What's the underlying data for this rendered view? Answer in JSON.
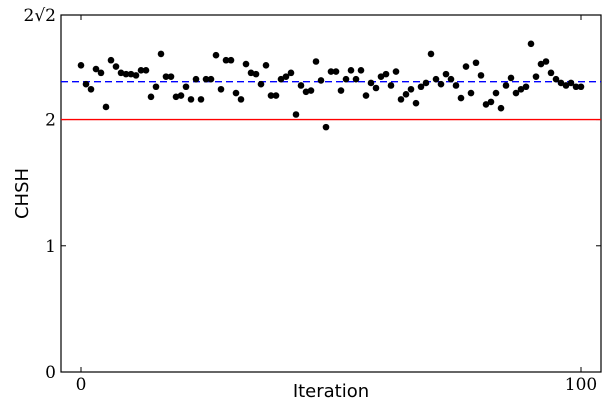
{
  "chart_data": {
    "type": "scatter",
    "title": "",
    "xlabel": "Iteration",
    "ylabel": "CHSH",
    "xlim": [
      -4,
      104
    ],
    "ylim": [
      0,
      2.8284
    ],
    "grid": false,
    "x_ticks": [
      {
        "value": 0,
        "label": "0"
      },
      {
        "value": 100,
        "label": "100"
      }
    ],
    "y_ticks": [
      {
        "value": 0,
        "label": "0"
      },
      {
        "value": 1,
        "label": "1"
      },
      {
        "value": 2,
        "label": "2"
      },
      {
        "value": 2.8284,
        "label": "2√2"
      }
    ],
    "reference_lines": [
      {
        "y": 2.0,
        "style": "solid",
        "color": "#ff0000"
      },
      {
        "y": 2.3,
        "style": "dashed",
        "color": "#0000ff"
      }
    ],
    "series": [
      {
        "color": "#000000",
        "x": [
          0,
          1,
          2,
          3,
          4,
          5,
          6,
          7,
          8,
          9,
          10,
          11,
          12,
          13,
          14,
          15,
          16,
          17,
          18,
          19,
          20,
          21,
          22,
          23,
          24,
          25,
          26,
          27,
          28,
          29,
          30,
          31,
          32,
          33,
          34,
          35,
          36,
          37,
          38,
          39,
          40,
          41,
          42,
          43,
          44,
          45,
          46,
          47,
          48,
          49,
          50,
          51,
          52,
          53,
          54,
          55,
          56,
          57,
          58,
          59,
          60,
          61,
          62,
          63,
          64,
          65,
          66,
          67,
          68,
          69,
          70,
          71,
          72,
          73,
          74,
          75,
          76,
          77,
          78,
          79,
          80,
          81,
          82,
          83,
          84,
          85,
          86,
          87,
          88,
          89,
          90,
          91,
          92,
          93,
          94,
          95,
          96,
          97,
          98,
          99,
          100
        ],
        "values": [
          2.43,
          2.28,
          2.24,
          2.4,
          2.37,
          2.1,
          2.47,
          2.42,
          2.37,
          2.36,
          2.36,
          2.35,
          2.39,
          2.39,
          2.18,
          2.26,
          2.52,
          2.34,
          2.34,
          2.18,
          2.19,
          2.26,
          2.16,
          2.32,
          2.16,
          2.32,
          2.32,
          2.51,
          2.24,
          2.47,
          2.47,
          2.21,
          2.16,
          2.44,
          2.37,
          2.36,
          2.28,
          2.43,
          2.19,
          2.19,
          2.32,
          2.34,
          2.37,
          2.04,
          2.27,
          2.22,
          2.23,
          2.46,
          2.31,
          1.94,
          2.38,
          2.38,
          2.23,
          2.32,
          2.39,
          2.32,
          2.39,
          2.19,
          2.29,
          2.25,
          2.34,
          2.36,
          2.27,
          2.38,
          2.16,
          2.2,
          2.24,
          2.13,
          2.26,
          2.29,
          2.52,
          2.32,
          2.28,
          2.36,
          2.32,
          2.27,
          2.17,
          2.42,
          2.21,
          2.45,
          2.35,
          2.12,
          2.14,
          2.21,
          2.09,
          2.27,
          2.33,
          2.21,
          2.24,
          2.26,
          2.6,
          2.34,
          2.44,
          2.46,
          2.37,
          2.32,
          2.29,
          2.27,
          2.29,
          2.26,
          2.26
        ]
      }
    ]
  }
}
